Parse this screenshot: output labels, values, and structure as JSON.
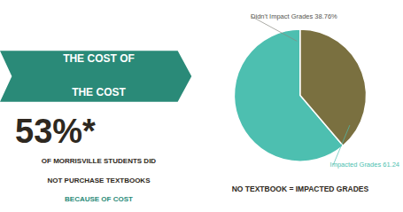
{
  "chart_data": {
    "type": "pie",
    "title": "NO TEXTBOOK = IMPACTED GRADES",
    "values": [
      61.24,
      38.76
    ],
    "value_labels": [
      "Impacted Grades 61.24",
      "Didn't Impact Grades 38.76%"
    ],
    "colors": [
      "#4dbfb0",
      "#7a7040"
    ],
    "annotations": [
      "THE COST OF",
      "THE COST",
      "53%*",
      "OF MORRISVILLE STUDENTS DID",
      "NOT PURCHASE TEXTBOOKS",
      "BECAUSE OF COST"
    ]
  }
}
